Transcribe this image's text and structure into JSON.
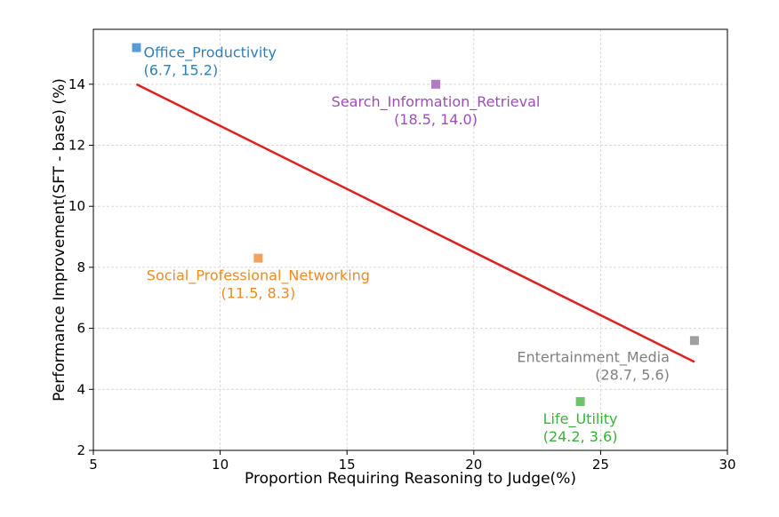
{
  "chart_data": {
    "type": "scatter",
    "title": "",
    "xlabel": "Proportion Requiring Reasoning to Judge(%)",
    "ylabel": "Performance Improvement(SFT - base) (%)",
    "xlim": [
      5,
      30
    ],
    "ylim": [
      2,
      15.8
    ],
    "xticks": [
      5,
      10,
      15,
      20,
      25,
      30
    ],
    "yticks": [
      2,
      4,
      6,
      8,
      10,
      12,
      14
    ],
    "grid": true,
    "points": [
      {
        "name": "Office_Productivity",
        "coord_text": "(6.7, 15.2)",
        "x": 6.7,
        "y": 15.2,
        "color": "#5b9bd5",
        "text_color": "#2e7ebc",
        "label_side": "right"
      },
      {
        "name": "Search_Information_Retrieval",
        "coord_text": "(18.5, 14.0)",
        "x": 18.5,
        "y": 14.0,
        "color": "#b07cc6",
        "text_color": "#9b4fb5",
        "label_side": "below"
      },
      {
        "name": "Social_Professional_Networking",
        "coord_text": "(11.5, 8.3)",
        "x": 11.5,
        "y": 8.3,
        "color": "#f5a25d",
        "text_color": "#f08a24",
        "label_side": "below"
      },
      {
        "name": "Entertainment_Media",
        "coord_text": "(28.7, 5.6)",
        "x": 28.7,
        "y": 5.6,
        "color": "#a0a0a0",
        "text_color": "#808080",
        "label_side": "below-left"
      },
      {
        "name": "Life_Utility",
        "coord_text": "(24.2, 3.6)",
        "x": 24.2,
        "y": 3.6,
        "color": "#6cc36c",
        "text_color": "#3cb03c",
        "label_side": "below"
      }
    ],
    "trendline": {
      "x": [
        6.7,
        28.7
      ],
      "y": [
        14.0,
        4.9
      ],
      "color": "#e02020"
    }
  }
}
